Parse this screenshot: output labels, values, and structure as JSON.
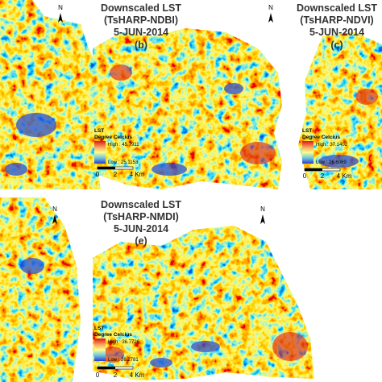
{
  "panels": [
    {
      "north": "N"
    },
    {
      "title": [
        "Downscaled LST",
        "(TsHARP-NDBI)",
        "5-JUN-2014"
      ],
      "label": "(b)",
      "north": "N",
      "legend": {
        "title": "LST",
        "subtitle": "Degree Celcius",
        "high": "High : 45.7911",
        "low": "Low : 25.1153"
      },
      "scale": [
        "0",
        "2",
        "4 Km"
      ]
    },
    {
      "title": [
        "Downscaled LST",
        "(TsHARP-NDVI)",
        "5-JUN-2014"
      ],
      "label": "(c)",
      "legend": {
        "title": "LST",
        "subtitle": "Degree Celcius",
        "high": "High : 37.1402",
        "low": "Low : 26.6069"
      },
      "scale": [
        "0",
        "2",
        "4 Km"
      ]
    },
    {
      "north": "N"
    },
    {
      "title": [
        "Downscaled LST",
        "(TsHARP-NMDI)",
        "5-JUN-2014"
      ],
      "label": "(e)",
      "north": "N",
      "legend": {
        "title": "LST",
        "subtitle": "Degree Celcius",
        "high": "High : 36.7726",
        "low": "Low : 26.2781"
      },
      "scale": [
        "0",
        "2",
        "4 Km"
      ]
    }
  ]
}
